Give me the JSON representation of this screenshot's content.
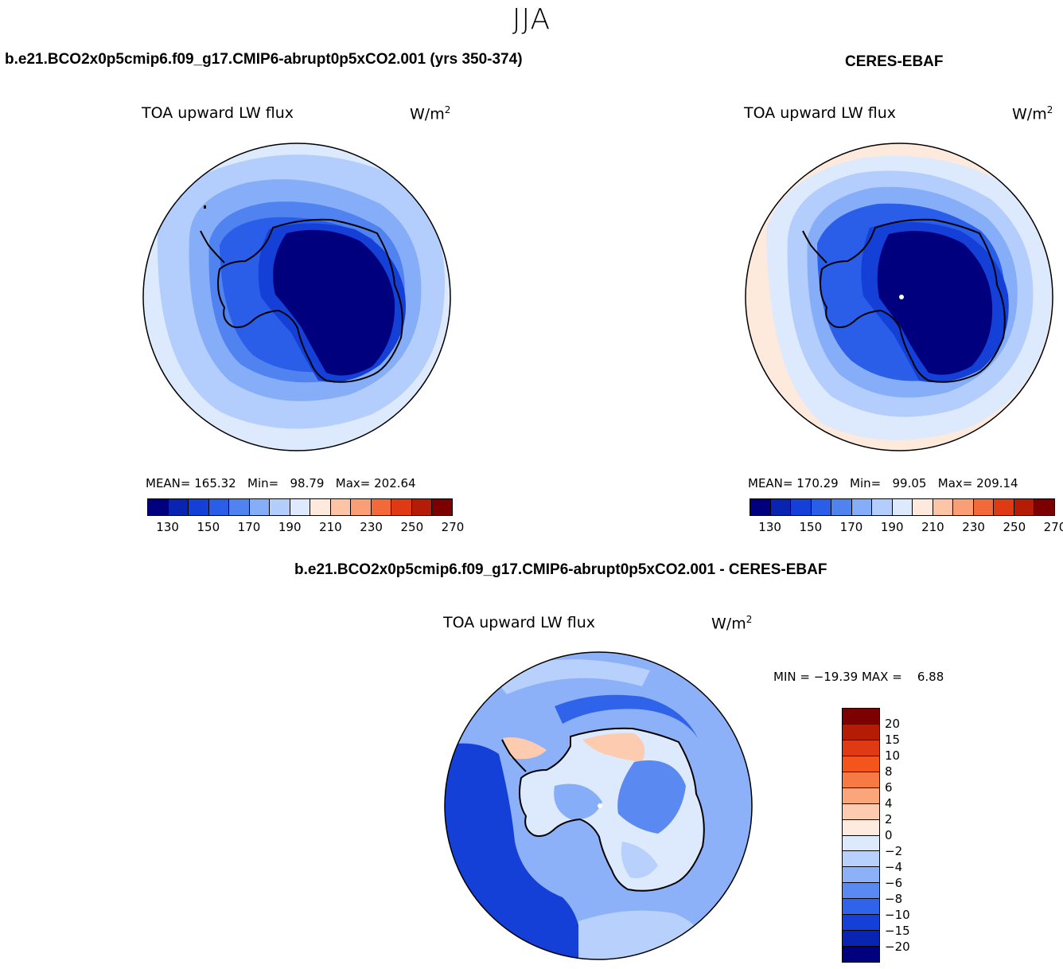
{
  "season": "JJA",
  "panel_left": {
    "case_title": "b.e21.BCO2x0p5cmip6.f09_g17.CMIP6-abrupt0p5xCO2.001 (yrs 350-374)",
    "variable": "TOA upward LW flux",
    "units": "W/m",
    "units_exp": "2",
    "stats": "MEAN= 165.32   Min=   98.79   Max= 202.64",
    "mean": 165.32,
    "min": 98.79,
    "max": 202.64
  },
  "panel_right": {
    "case_title": "CERES-EBAF",
    "variable": "TOA upward LW flux",
    "units": "W/m",
    "units_exp": "2",
    "stats": "MEAN= 170.29   Min=   99.05   Max= 209.14",
    "mean": 170.29,
    "min": 99.05,
    "max": 209.14
  },
  "panel_diff": {
    "case_title": "b.e21.BCO2x0p5cmip6.f09_g17.CMIP6-abrupt0p5xCO2.001 - CERES-EBAF",
    "variable": "TOA upward LW flux",
    "units": "W/m",
    "units_exp": "2",
    "stats": "MIN = −19.39 MAX =    6.88",
    "min": -19.39,
    "max": 6.88
  },
  "colorbar_abs": {
    "colors": [
      "#00007f",
      "#0a24b2",
      "#1440d8",
      "#2a5ee8",
      "#5083f0",
      "#86adf8",
      "#b3cdfc",
      "#dde9fd",
      "#feeadc",
      "#fdc4a6",
      "#fa9e76",
      "#f4693a",
      "#e03a14",
      "#b41c06",
      "#7d0000"
    ],
    "tick_labels": [
      "130",
      "150",
      "170",
      "190",
      "210",
      "230",
      "250",
      "270"
    ]
  },
  "colorbar_diff": {
    "colors": [
      "#7d0000",
      "#b41c06",
      "#e03a14",
      "#f4551a",
      "#f77a45",
      "#fba57b",
      "#fdccb0",
      "#feeadf",
      "#dde9fd",
      "#b8d1fc",
      "#8cb1f8",
      "#5a89f1",
      "#2f63e9",
      "#1440d8",
      "#0a24b2",
      "#00007f"
    ],
    "tick_labels": [
      "20",
      "15",
      "10",
      "8",
      "6",
      "4",
      "2",
      "0",
      "−2",
      "−4",
      "−6",
      "−8",
      "−10",
      "−15",
      "−20"
    ]
  }
}
